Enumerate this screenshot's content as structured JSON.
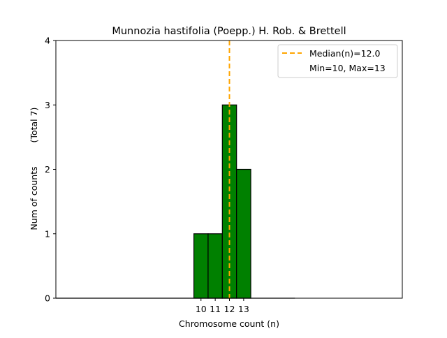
{
  "chart_data": {
    "type": "bar",
    "title": "Munnozia hastifolia (Poepp.) H. Rob. & Brettell",
    "xlabel": "Chromosome count (n)",
    "ylabel": "Num of counts",
    "ylabel_total": "(Total 7)",
    "categories": [
      10,
      11,
      12,
      13
    ],
    "values": [
      1,
      1,
      3,
      2
    ],
    "xlim": [
      -0.2,
      24.15
    ],
    "ylim": [
      0,
      4
    ],
    "baseline_extent": [
      -0.2,
      16.6
    ],
    "xticks": [
      "10",
      "11",
      "12",
      "13"
    ],
    "yticks": [
      "0",
      "1",
      "2",
      "3",
      "4"
    ],
    "median": 12.0,
    "legend": {
      "placement": "top-right",
      "entries": [
        "Median(n)=12.0",
        "Min=10, Max=13"
      ]
    },
    "colors": {
      "bar": "#008000",
      "edge": "#000000",
      "median": "#FFA500"
    },
    "grid": false
  }
}
